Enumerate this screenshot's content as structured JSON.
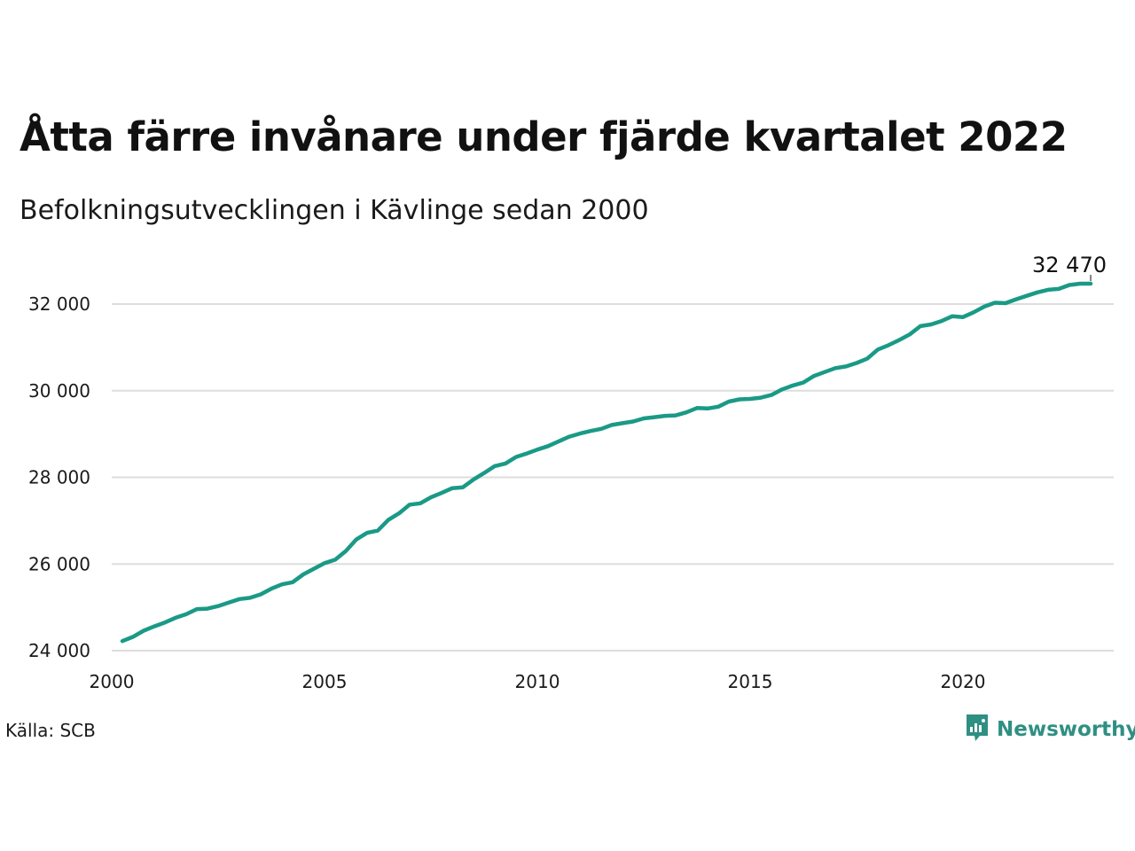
{
  "chart_data": {
    "type": "line",
    "title": "Åtta färre invånare under fjärde kvartalet 2022",
    "subtitle": "Befolkningsutvecklingen i Kävlinge sedan 2000",
    "xlabel": "",
    "ylabel": "",
    "x_ticks": [
      "2000",
      "2005",
      "2010",
      "2015",
      "2020"
    ],
    "y_ticks": [
      "24 000",
      "26 000",
      "28 000",
      "30 000",
      "32 000"
    ],
    "y_tick_values": [
      24000,
      26000,
      28000,
      30000,
      32000
    ],
    "ylim": [
      24000,
      32600
    ],
    "xlim": [
      2000,
      2024
    ],
    "grid": true,
    "end_label": "32 470",
    "colors": {
      "line": "#1a9a86",
      "grid": "#dddddd"
    },
    "series": [
      {
        "x": [
          2000.25,
          2000.5,
          2000.75,
          2001.0,
          2001.25,
          2001.5,
          2001.75,
          2002.0,
          2002.25,
          2002.5,
          2002.75,
          2003.0,
          2003.25,
          2003.5,
          2003.75,
          2004.0,
          2004.25,
          2004.5,
          2004.75,
          2005.0,
          2005.25,
          2005.5,
          2005.75,
          2006.0,
          2006.25,
          2006.5,
          2006.75,
          2007.0,
          2007.25,
          2007.5,
          2007.75,
          2008.0,
          2008.25,
          2008.5,
          2008.75,
          2009.0,
          2009.25,
          2009.5,
          2009.75,
          2010.0,
          2010.25,
          2010.5,
          2010.75,
          2011.0,
          2011.25,
          2011.5,
          2011.75,
          2012.0,
          2012.25,
          2012.5,
          2012.75,
          2013.0,
          2013.25,
          2013.5,
          2013.75,
          2014.0,
          2014.25,
          2014.5,
          2014.75,
          2015.0,
          2015.25,
          2015.5,
          2015.75,
          2016.0,
          2016.25,
          2016.5,
          2016.75,
          2017.0,
          2017.25,
          2017.5,
          2017.75,
          2018.0,
          2018.25,
          2018.5,
          2018.75,
          2019.0,
          2019.25,
          2019.5,
          2019.75,
          2020.0,
          2020.25,
          2020.5,
          2020.75,
          2021.0,
          2021.25,
          2021.5,
          2021.75,
          2022.0,
          2022.25,
          2022.5,
          2022.75,
          2023.0
        ],
        "values": [
          24220,
          24320,
          24460,
          24560,
          24650,
          24760,
          24840,
          24960,
          24970,
          25030,
          25110,
          25190,
          25220,
          25300,
          25430,
          25530,
          25580,
          25760,
          25890,
          26020,
          26100,
          26300,
          26570,
          26720,
          26770,
          27020,
          27170,
          27370,
          27400,
          27540,
          27640,
          27750,
          27770,
          27950,
          28100,
          28260,
          28320,
          28470,
          28550,
          28640,
          28720,
          28830,
          28940,
          29010,
          29070,
          29120,
          29210,
          29250,
          29290,
          29360,
          29390,
          29420,
          29430,
          29500,
          29600,
          29590,
          29630,
          29750,
          29800,
          29810,
          29840,
          29900,
          30030,
          30120,
          30190,
          30340,
          30430,
          30520,
          30560,
          30640,
          30740,
          30950,
          31050,
          31170,
          31300,
          31490,
          31530,
          31610,
          31720,
          31700,
          31810,
          31940,
          32030,
          32020,
          32110,
          32190,
          32270,
          32330,
          32350,
          32440,
          32470,
          32470
        ]
      }
    ]
  },
  "source": "Källa: SCB",
  "brand": {
    "name": "Newsworthy",
    "icon": "newsworthy-logo-icon",
    "color": "#2f8f83"
  }
}
